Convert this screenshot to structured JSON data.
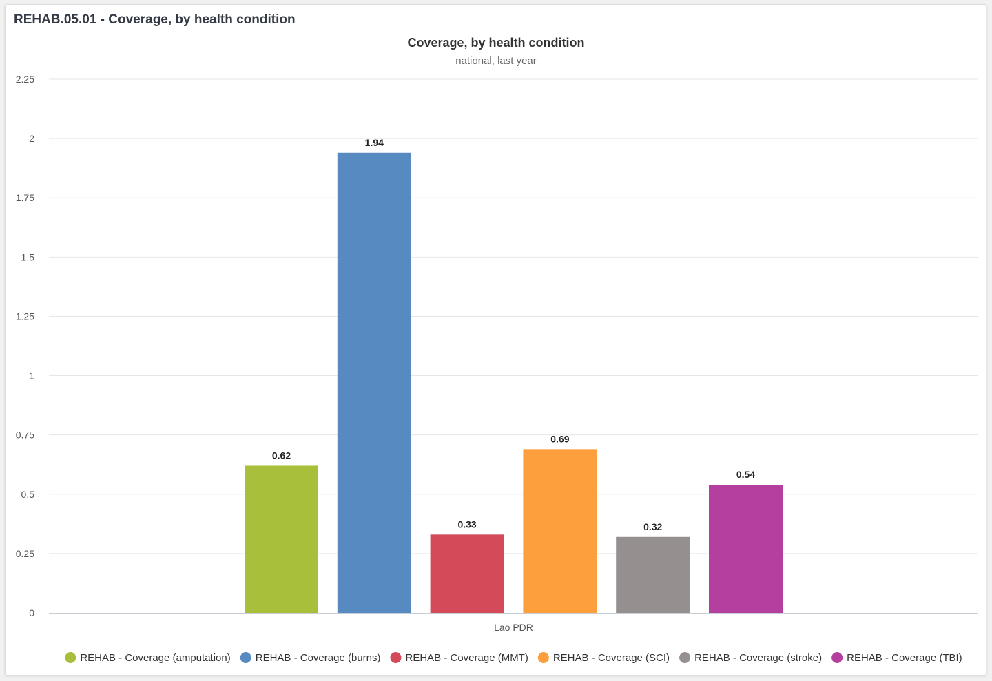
{
  "card": {
    "title": "REHAB.05.01 - Coverage, by health condition"
  },
  "chart_data": {
    "type": "bar",
    "title": "Coverage, by health condition",
    "subtitle": "national, last year",
    "categories": [
      "Lao PDR"
    ],
    "xlabel": "",
    "ylabel": "",
    "ylim": [
      0,
      2.25
    ],
    "yticks": [
      0,
      0.25,
      0.5,
      0.75,
      1,
      1.25,
      1.5,
      1.75,
      2,
      2.25
    ],
    "ytick_labels": [
      "0",
      "0.25",
      "0.5",
      "0.75",
      "1",
      "1.25",
      "1.5",
      "1.75",
      "2",
      "2.25"
    ],
    "grid": true,
    "legend_position": "bottom",
    "series": [
      {
        "name": "REHAB - Coverage (amputation)",
        "values": [
          0.62
        ],
        "label": "0.62",
        "color": "#a8bf3c"
      },
      {
        "name": "REHAB - Coverage (burns)",
        "values": [
          1.94
        ],
        "label": "1.94",
        "color": "#568ac1"
      },
      {
        "name": "REHAB - Coverage (MMT)",
        "values": [
          0.33
        ],
        "label": "0.33",
        "color": "#d44a58"
      },
      {
        "name": "REHAB - Coverage (SCI)",
        "values": [
          0.69
        ],
        "label": "0.69",
        "color": "#fd9f3c"
      },
      {
        "name": "REHAB - Coverage (stroke)",
        "values": [
          0.32
        ],
        "label": "0.32",
        "color": "#968f8f"
      },
      {
        "name": "REHAB - Coverage (TBI)",
        "values": [
          0.54
        ],
        "label": "0.54",
        "color": "#b43f9f"
      }
    ]
  }
}
